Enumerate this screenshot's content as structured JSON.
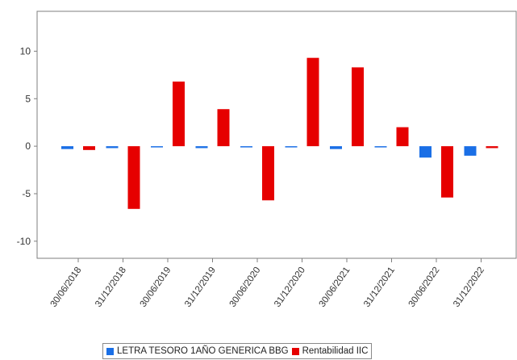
{
  "chart_data": {
    "type": "bar",
    "categories": [
      "30/06/2018",
      "31/12/2018",
      "30/06/2019",
      "31/12/2019",
      "30/06/2020",
      "31/12/2020",
      "30/06/2021",
      "31/12/2021",
      "30/06/2022",
      "31/12/2022"
    ],
    "series": [
      {
        "name": "LETRA TESORO 1AÑO GENERICA BBG",
        "color": "#1a6fe6",
        "values": [
          -0.3,
          -0.2,
          -0.1,
          -0.2,
          -0.1,
          -0.1,
          -0.3,
          -0.1,
          -1.2,
          -1.0
        ]
      },
      {
        "name": "Rentabilidad IIC",
        "color": "#e60000",
        "values": [
          -0.4,
          -6.6,
          6.8,
          3.9,
          -5.7,
          9.3,
          8.3,
          2.0,
          -5.4,
          -0.2
        ]
      }
    ],
    "yticks": [
      10,
      5,
      0,
      -5,
      -10
    ],
    "ylim": [
      -11.8,
      14.2
    ],
    "title": "",
    "xlabel": "",
    "ylabel": "",
    "grid": false,
    "legend_position": "bottom"
  }
}
